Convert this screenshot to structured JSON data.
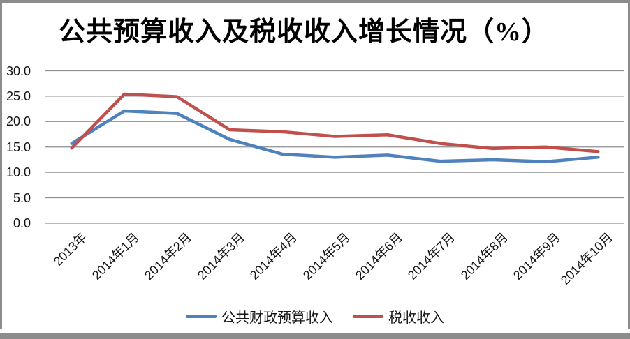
{
  "frame": {
    "border_color": "#8c8c8c",
    "background": "#ffffff"
  },
  "chart_data": {
    "type": "line",
    "title": "公共预算收入及税收收入增长情况（%）",
    "categories": [
      "2013年",
      "2014年1月",
      "2014年2月",
      "2014年3月",
      "2014年4月",
      "2014年5月",
      "2014年6月",
      "2014年7月",
      "2014年8月",
      "2014年9月",
      "2014年10月"
    ],
    "series": [
      {
        "name": "公共财政预算收入",
        "color": "#4F81BD",
        "values": [
          15.7,
          22.1,
          21.6,
          16.5,
          13.6,
          13.0,
          13.4,
          12.2,
          12.5,
          12.1,
          13.0
        ]
      },
      {
        "name": "税收收入",
        "color": "#C0504D",
        "values": [
          14.8,
          25.4,
          24.9,
          18.4,
          18.0,
          17.1,
          17.4,
          15.7,
          14.7,
          15.0,
          14.1
        ]
      }
    ],
    "xlabel": "",
    "ylabel": "",
    "ylim": [
      0,
      30
    ],
    "ytick_step": 5,
    "ytick_labels": [
      "0.0",
      "5.0",
      "10.0",
      "15.0",
      "20.0",
      "25.0",
      "30.0"
    ],
    "grid": true,
    "legend_position": "bottom",
    "x_label_rotation": -45
  }
}
